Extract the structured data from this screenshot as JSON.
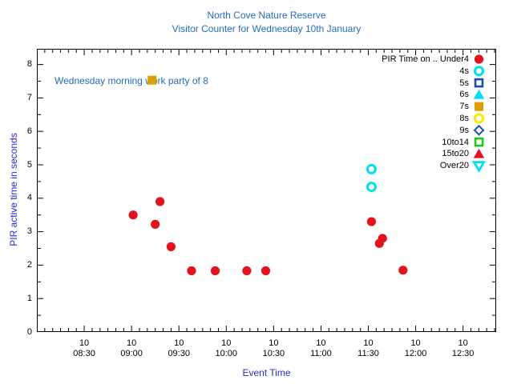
{
  "colors": {
    "background": "#ffffff",
    "frame": "#000000",
    "title_text": "#1f6cbf",
    "axis_label_text": "#2929d4",
    "tick_text": "#000000",
    "red": "#e3131e",
    "cyan": "#00e1ef",
    "navy": "#1c4fa8",
    "orange": "#dba000",
    "yellow": "#ffe600",
    "green": "#1ac81a"
  },
  "chart_data": {
    "type": "scatter",
    "title_line1": "North Cove Nature Reserve",
    "title_line2": "Visitor Counter for Wednesday 10th January",
    "xlabel": "Event Time",
    "ylabel": "PIR active time in seconds",
    "annotation": "Wednesday morning work party of 8",
    "x_axis": {
      "day_label": "10",
      "range_start": "08:00",
      "range_end": "12:51",
      "major_ticks": [
        "08:30",
        "09:00",
        "09:30",
        "10:00",
        "10:30",
        "11:00",
        "11:30",
        "12:00",
        "12:30"
      ],
      "minor_step_minutes": 5,
      "grid": false
    },
    "y_axis": {
      "min": 0,
      "max": 8,
      "major_step": 1,
      "minor_step": 0.5,
      "tick_labels": [
        "0",
        "1",
        "2",
        "3",
        "4",
        "5",
        "6",
        "7",
        "8"
      ],
      "grid": false
    },
    "legend_position": "top-right-inside",
    "series": [
      {
        "name": "PIR Time on .. Under4",
        "marker": "filled-circle",
        "color": "#e3131e",
        "points": [
          [
            "09:01",
            3.5
          ],
          [
            "09:15",
            3.22
          ],
          [
            "09:18",
            3.9
          ],
          [
            "09:25",
            2.55
          ],
          [
            "09:38",
            1.83
          ],
          [
            "09:53",
            1.83
          ],
          [
            "10:13",
            1.83
          ],
          [
            "10:25",
            1.83
          ],
          [
            "11:32",
            3.3
          ],
          [
            "11:37",
            2.65
          ],
          [
            "11:39",
            2.8
          ],
          [
            "11:52",
            1.85
          ]
        ]
      },
      {
        "name": "4s",
        "marker": "open-circle",
        "color": "#00e1ef",
        "points": [
          [
            "11:32",
            4.87
          ],
          [
            "11:32",
            4.34
          ]
        ]
      },
      {
        "name": "5s",
        "marker": "open-square",
        "color": "#1c4fa8",
        "points": []
      },
      {
        "name": "6s",
        "marker": "filled-triangle-up",
        "color": "#00e1ef",
        "points": []
      },
      {
        "name": "7s",
        "marker": "filled-square",
        "color": "#dba000",
        "points": [
          [
            "09:13",
            7.53
          ]
        ]
      },
      {
        "name": "8s",
        "marker": "open-circle",
        "color": "#ffe600",
        "points": []
      },
      {
        "name": "9s",
        "marker": "open-diamond",
        "color": "#1c4fa8",
        "points": []
      },
      {
        "name": "10to14",
        "marker": "open-square",
        "color": "#1ac81a",
        "points": []
      },
      {
        "name": "15to20",
        "marker": "filled-triangle-up",
        "color": "#e3131e",
        "points": []
      },
      {
        "name": "Over20",
        "marker": "open-triangle-down",
        "color": "#00e1ef",
        "points": []
      }
    ]
  }
}
